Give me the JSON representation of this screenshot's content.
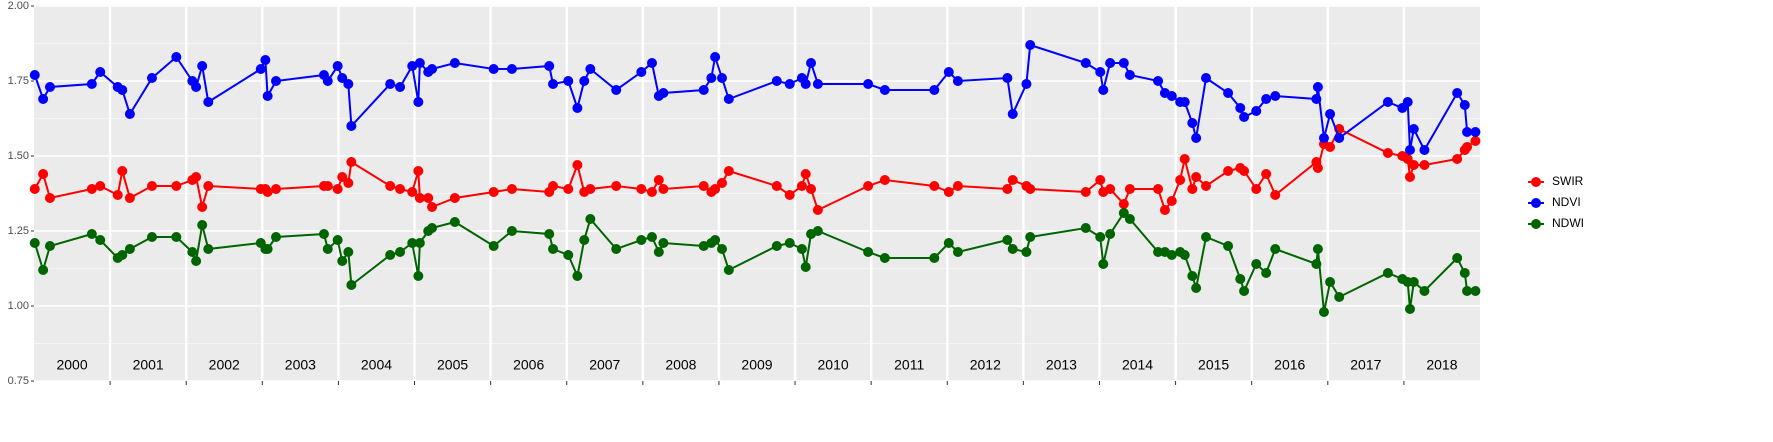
{
  "chart_data": {
    "type": "line",
    "x": [
      2000.01,
      2000.12,
      2000.21,
      2000.76,
      2000.87,
      2001.1,
      2001.16,
      2001.26,
      2001.55,
      2001.87,
      2002.08,
      2002.13,
      2002.21,
      2002.29,
      2002.98,
      2003.04,
      2003.07,
      2003.18,
      2003.81,
      2003.86,
      2003.99,
      2004.05,
      2004.13,
      2004.17,
      2004.68,
      2004.81,
      2004.97,
      2005.05,
      2005.07,
      2005.18,
      2005.23,
      2005.53,
      2006.04,
      2006.28,
      2006.77,
      2006.82,
      2007.02,
      2007.14,
      2007.23,
      2007.31,
      2007.65,
      2007.98,
      2008.12,
      2008.21,
      2008.27,
      2008.8,
      2008.9,
      2008.95,
      2009.04,
      2009.13,
      2009.76,
      2009.93,
      2010.09,
      2010.14,
      2010.21,
      2010.3,
      2010.96,
      2011.18,
      2011.83,
      2012.02,
      2012.14,
      2012.79,
      2012.86,
      2013.04,
      2013.09,
      2013.82,
      2014.01,
      2014.05,
      2014.14,
      2014.32,
      2014.4,
      2014.77,
      2014.86,
      2014.95,
      2015.06,
      2015.12,
      2015.22,
      2015.27,
      2015.4,
      2015.69,
      2015.85,
      2015.9,
      2016.06,
      2016.19,
      2016.31,
      2016.85,
      2016.87,
      2016.95,
      2017.03,
      2017.15,
      2017.79,
      2017.98,
      2018.05,
      2018.08,
      2018.13,
      2018.27,
      2018.7,
      2018.8,
      2018.83,
      2018.94
    ],
    "series": [
      {
        "name": "SWIR",
        "color": "#ff0000",
        "values": [
          1.39,
          1.44,
          1.36,
          1.39,
          1.4,
          1.37,
          1.45,
          1.36,
          1.4,
          1.4,
          1.42,
          1.43,
          1.33,
          1.4,
          1.39,
          1.39,
          1.38,
          1.39,
          1.4,
          1.4,
          1.39,
          1.43,
          1.41,
          1.48,
          1.4,
          1.39,
          1.38,
          1.45,
          1.36,
          1.36,
          1.33,
          1.36,
          1.38,
          1.39,
          1.38,
          1.4,
          1.39,
          1.47,
          1.38,
          1.39,
          1.4,
          1.39,
          1.38,
          1.42,
          1.39,
          1.4,
          1.38,
          1.39,
          1.41,
          1.45,
          1.4,
          1.37,
          1.4,
          1.44,
          1.39,
          1.32,
          1.4,
          1.42,
          1.4,
          1.38,
          1.4,
          1.39,
          1.42,
          1.4,
          1.39,
          1.38,
          1.42,
          1.38,
          1.39,
          1.34,
          1.39,
          1.39,
          1.32,
          1.35,
          1.42,
          1.49,
          1.39,
          1.43,
          1.4,
          1.45,
          1.46,
          1.45,
          1.39,
          1.44,
          1.37,
          1.48,
          1.46,
          1.54,
          1.53,
          1.59,
          1.51,
          1.5,
          1.49,
          1.43,
          1.47,
          1.47,
          1.49,
          1.52,
          1.53,
          1.55
        ]
      },
      {
        "name": "NDVI",
        "color": "#0000ff",
        "values": [
          1.77,
          1.69,
          1.73,
          1.74,
          1.78,
          1.73,
          1.72,
          1.64,
          1.76,
          1.83,
          1.75,
          1.73,
          1.8,
          1.68,
          1.79,
          1.82,
          1.7,
          1.75,
          1.77,
          1.75,
          1.8,
          1.76,
          1.74,
          1.6,
          1.74,
          1.73,
          1.8,
          1.68,
          1.81,
          1.78,
          1.79,
          1.81,
          1.79,
          1.79,
          1.8,
          1.74,
          1.75,
          1.66,
          1.75,
          1.79,
          1.72,
          1.78,
          1.81,
          1.7,
          1.71,
          1.72,
          1.76,
          1.83,
          1.76,
          1.69,
          1.75,
          1.74,
          1.76,
          1.74,
          1.81,
          1.74,
          1.74,
          1.72,
          1.72,
          1.78,
          1.75,
          1.76,
          1.64,
          1.74,
          1.87,
          1.81,
          1.78,
          1.72,
          1.81,
          1.81,
          1.77,
          1.75,
          1.71,
          1.7,
          1.68,
          1.68,
          1.61,
          1.56,
          1.76,
          1.71,
          1.66,
          1.63,
          1.65,
          1.69,
          1.7,
          1.69,
          1.73,
          1.56,
          1.64,
          1.56,
          1.68,
          1.66,
          1.68,
          1.52,
          1.59,
          1.52,
          1.71,
          1.67,
          1.58,
          1.58
        ]
      },
      {
        "name": "NDWI",
        "color": "#006400",
        "values": [
          1.21,
          1.12,
          1.2,
          1.24,
          1.22,
          1.16,
          1.17,
          1.19,
          1.23,
          1.23,
          1.18,
          1.15,
          1.27,
          1.19,
          1.21,
          1.19,
          1.19,
          1.23,
          1.24,
          1.19,
          1.22,
          1.15,
          1.18,
          1.07,
          1.17,
          1.18,
          1.21,
          1.1,
          1.21,
          1.25,
          1.26,
          1.28,
          1.2,
          1.25,
          1.24,
          1.19,
          1.17,
          1.1,
          1.22,
          1.29,
          1.19,
          1.22,
          1.23,
          1.18,
          1.21,
          1.2,
          1.21,
          1.22,
          1.19,
          1.12,
          1.2,
          1.21,
          1.19,
          1.13,
          1.24,
          1.25,
          1.18,
          1.16,
          1.16,
          1.21,
          1.18,
          1.22,
          1.19,
          1.18,
          1.23,
          1.26,
          1.23,
          1.14,
          1.24,
          1.31,
          1.29,
          1.18,
          1.18,
          1.17,
          1.18,
          1.17,
          1.1,
          1.06,
          1.23,
          1.2,
          1.09,
          1.05,
          1.14,
          1.11,
          1.19,
          1.14,
          1.19,
          0.98,
          1.08,
          1.03,
          1.11,
          1.09,
          1.08,
          0.99,
          1.08,
          1.05,
          1.16,
          1.11,
          1.05,
          1.05
        ]
      }
    ],
    "xlim": [
      2000,
      2019
    ],
    "xticks": [
      2001,
      2002,
      2003,
      2004,
      2005,
      2006,
      2007,
      2008,
      2009,
      2010,
      2011,
      2012,
      2013,
      2014,
      2015,
      2016,
      2017,
      2018
    ],
    "ylim": [
      0.75,
      2.0
    ],
    "yticks": [
      0.75,
      {
        "value": 1.0,
        "label": "1.00"
      },
      1.25,
      {
        "value": 1.5,
        "label": "1.50"
      },
      1.75,
      {
        "value": 2.0,
        "label": "2.00"
      }
    ],
    "annotations": [
      {
        "text": "2000",
        "x": 2000.5
      },
      {
        "text": "2001",
        "x": 2001.5
      },
      {
        "text": "2002",
        "x": 2002.5
      },
      {
        "text": "2003",
        "x": 2003.5
      },
      {
        "text": "2004",
        "x": 2004.5
      },
      {
        "text": "2005",
        "x": 2005.5
      },
      {
        "text": "2006",
        "x": 2006.5
      },
      {
        "text": "2007",
        "x": 2007.5
      },
      {
        "text": "2008",
        "x": 2008.5
      },
      {
        "text": "2009",
        "x": 2009.5
      },
      {
        "text": "2010",
        "x": 2010.5
      },
      {
        "text": "2011",
        "x": 2011.5
      },
      {
        "text": "2012",
        "x": 2012.5
      },
      {
        "text": "2013",
        "x": 2013.5
      },
      {
        "text": "2014",
        "x": 2014.5
      },
      {
        "text": "2015",
        "x": 2015.5
      },
      {
        "text": "2016",
        "x": 2016.5
      },
      {
        "text": "2017",
        "x": 2017.5
      },
      {
        "text": "2018",
        "x": 2018.5
      }
    ],
    "grid": true,
    "legend": "right"
  }
}
